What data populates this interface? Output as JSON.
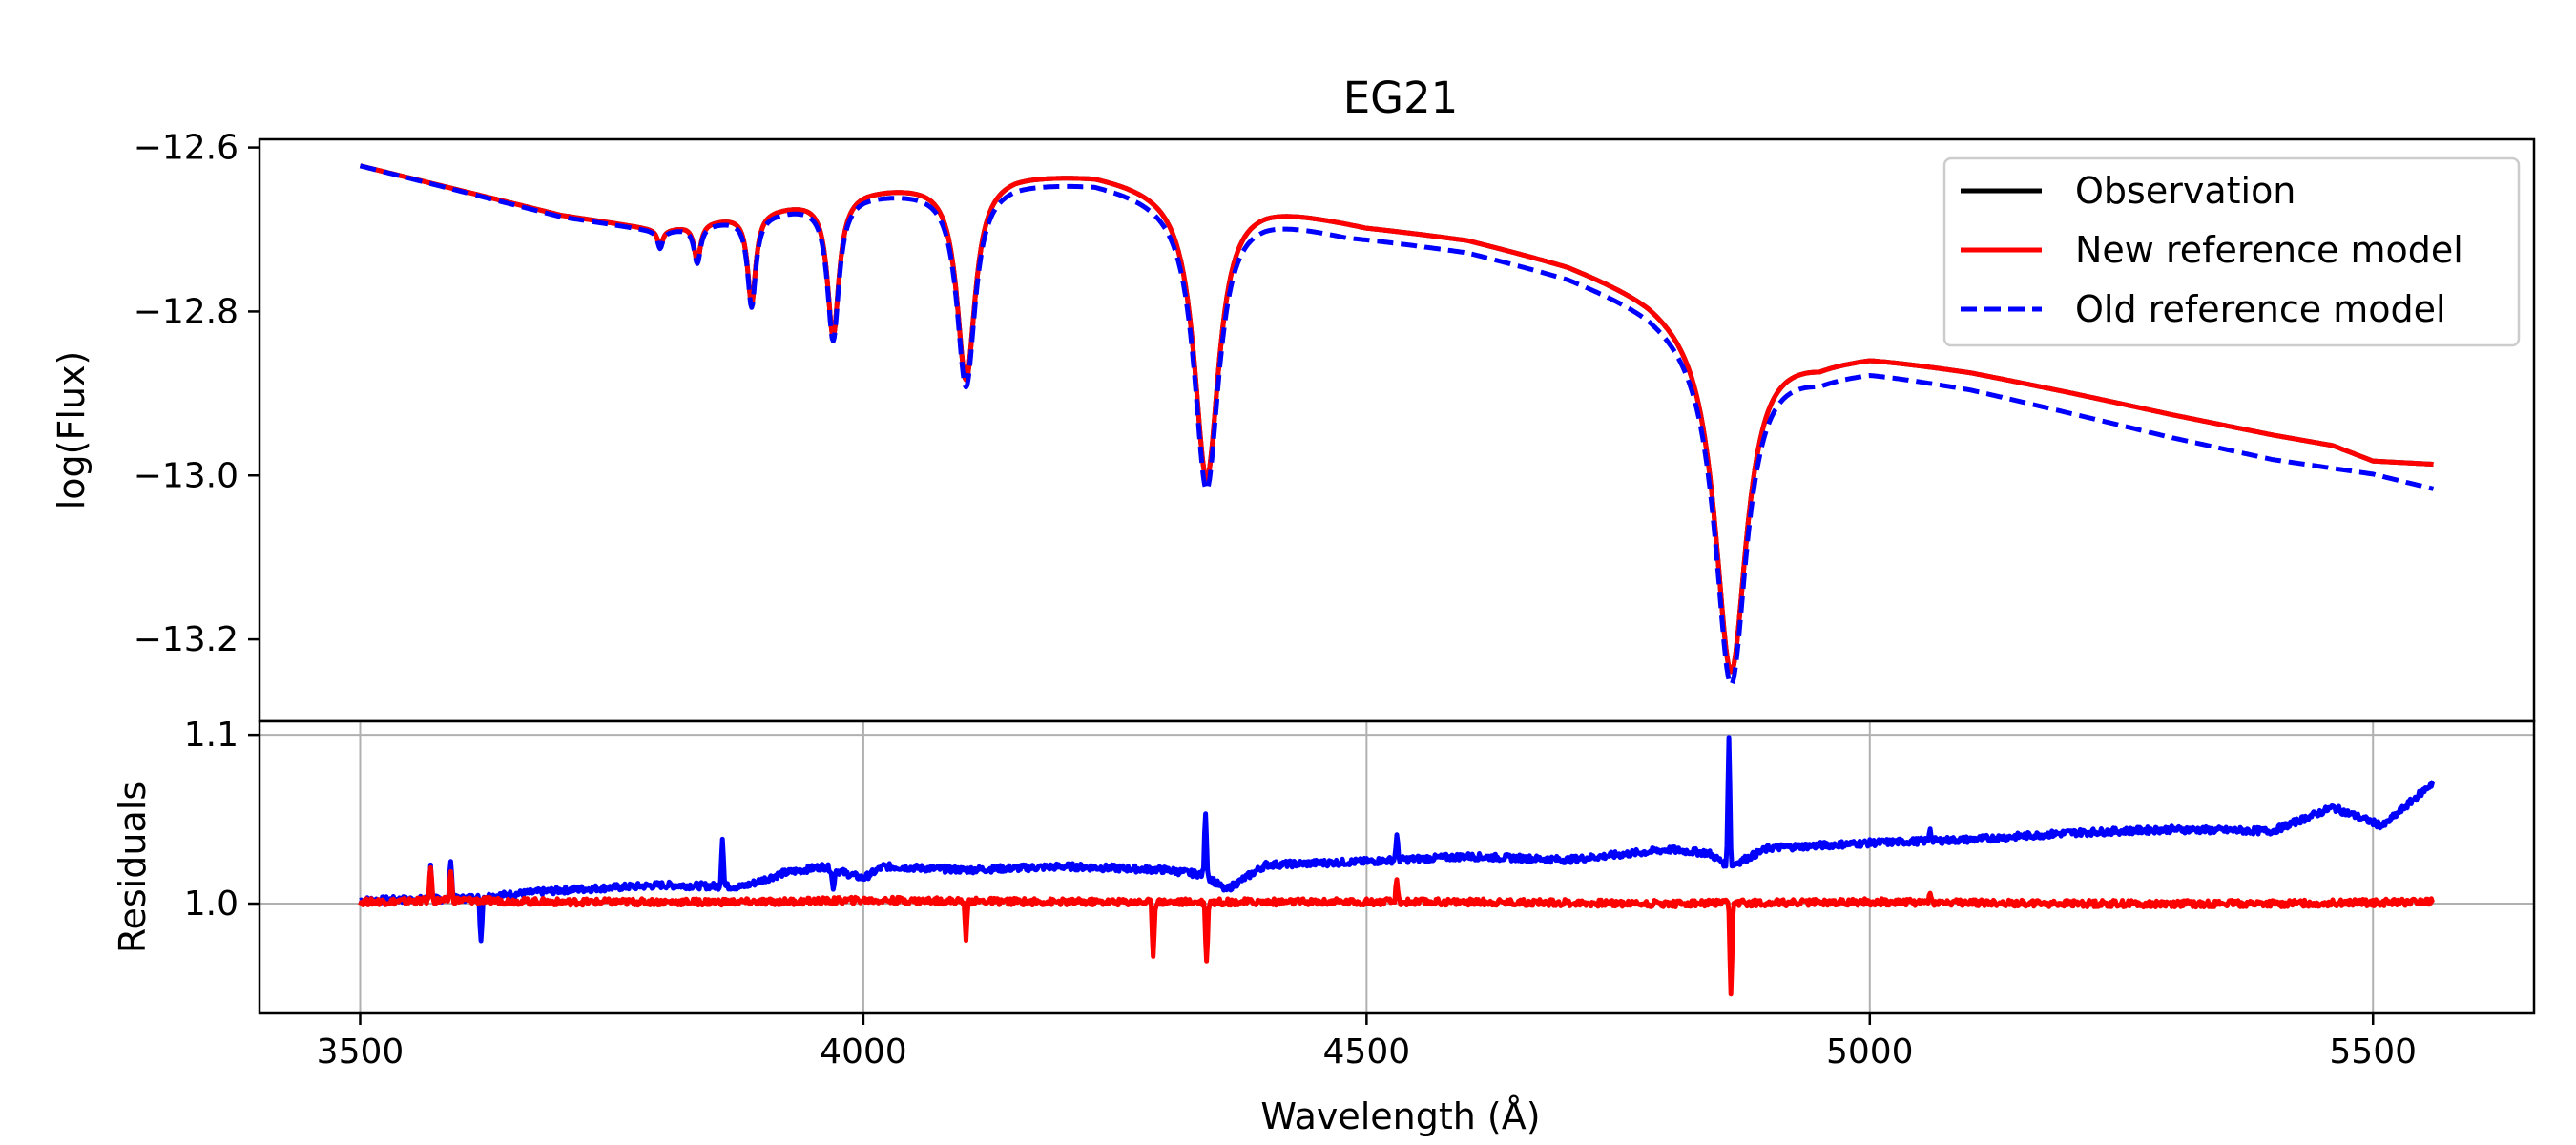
{
  "chart_data": [
    {
      "type": "line",
      "panel": "top",
      "title": "EG21",
      "xlabel": "",
      "ylabel": "log(Flux)",
      "xlim": [
        3400,
        5660
      ],
      "ylim": [
        -13.3,
        -12.59
      ],
      "yticks": [
        -12.6,
        -12.8,
        -13.0,
        -13.2
      ],
      "ytick_labels": [
        "−12.6",
        "−12.8",
        "−13.0",
        "−13.2"
      ],
      "grid": false,
      "legend_position": "top-right",
      "lines": [
        {
          "name": "H-epsilon",
          "center": 3970,
          "depth": 0.17,
          "width": 7
        },
        {
          "name": "H-zeta",
          "center": 3889,
          "depth": 0.11,
          "width": 5
        },
        {
          "name": "H-eta",
          "center": 3835,
          "depth": 0.045,
          "width": 4
        },
        {
          "name": "H-theta",
          "center": 3798,
          "depth": 0.02,
          "width": 3
        },
        {
          "name": "H-delta",
          "center": 4102,
          "depth": 0.245,
          "width": 11
        },
        {
          "name": "H-gamma",
          "center": 4341,
          "depth": 0.35,
          "width": 15
        },
        {
          "name": "H-beta",
          "center": 4862,
          "depth": 0.42,
          "width": 19
        }
      ],
      "series": [
        {
          "name": "Observation",
          "color": "#000000",
          "style": "solid",
          "continuum": [
            [
              3500,
              -12.622
            ],
            [
              3700,
              -12.682
            ],
            [
              3800,
              -12.7
            ],
            [
              3900,
              -12.675
            ],
            [
              4000,
              -12.65
            ],
            [
              4150,
              -12.63
            ],
            [
              4230,
              -12.63
            ],
            [
              4400,
              -12.665
            ],
            [
              4500,
              -12.694
            ],
            [
              4600,
              -12.71
            ],
            [
              4700,
              -12.74
            ],
            [
              4780,
              -12.775
            ],
            [
              4840,
              -12.81
            ],
            [
              4950,
              -12.855
            ],
            [
              5000,
              -12.852
            ],
            [
              5100,
              -12.872
            ],
            [
              5200,
              -12.898
            ],
            [
              5300,
              -12.925
            ],
            [
              5400,
              -12.95
            ],
            [
              5460,
              -12.963
            ],
            [
              5500,
              -12.982
            ],
            [
              5560,
              -12.986
            ]
          ]
        },
        {
          "name": "New reference model",
          "color": "#ff0000",
          "style": "solid",
          "continuum": [
            [
              3500,
              -12.622
            ],
            [
              3700,
              -12.682
            ],
            [
              3800,
              -12.7
            ],
            [
              3900,
              -12.675
            ],
            [
              4000,
              -12.65
            ],
            [
              4150,
              -12.63
            ],
            [
              4230,
              -12.63
            ],
            [
              4400,
              -12.665
            ],
            [
              4500,
              -12.694
            ],
            [
              4600,
              -12.71
            ],
            [
              4700,
              -12.74
            ],
            [
              4780,
              -12.775
            ],
            [
              4840,
              -12.81
            ],
            [
              4950,
              -12.855
            ],
            [
              5000,
              -12.852
            ],
            [
              5100,
              -12.872
            ],
            [
              5200,
              -12.898
            ],
            [
              5300,
              -12.925
            ],
            [
              5400,
              -12.95
            ],
            [
              5460,
              -12.963
            ],
            [
              5500,
              -12.982
            ],
            [
              5560,
              -12.986
            ]
          ]
        },
        {
          "name": "Old reference model",
          "color": "#0000ff",
          "style": "dashed",
          "continuum": [
            [
              3500,
              -12.622
            ],
            [
              3700,
              -12.684
            ],
            [
              3800,
              -12.702
            ],
            [
              3900,
              -12.68
            ],
            [
              4000,
              -12.656
            ],
            [
              4150,
              -12.64
            ],
            [
              4230,
              -12.64
            ],
            [
              4400,
              -12.68
            ],
            [
              4480,
              -12.705
            ],
            [
              4600,
              -12.725
            ],
            [
              4700,
              -12.755
            ],
            [
              4780,
              -12.79
            ],
            [
              4840,
              -12.825
            ],
            [
              4950,
              -12.873
            ],
            [
              5000,
              -12.87
            ],
            [
              5100,
              -12.893
            ],
            [
              5200,
              -12.923
            ],
            [
              5300,
              -12.953
            ],
            [
              5400,
              -12.98
            ],
            [
              5500,
              -12.998
            ],
            [
              5560,
              -13.016
            ]
          ]
        }
      ]
    },
    {
      "type": "line",
      "panel": "bottom",
      "title": "",
      "xlabel": "Wavelength (Å)",
      "ylabel": "Residuals",
      "xlim": [
        3400,
        5660
      ],
      "ylim": [
        0.935,
        1.108
      ],
      "xticks": [
        3500,
        4000,
        4500,
        5000,
        5500
      ],
      "xtick_labels": [
        "3500",
        "4000",
        "4500",
        "5000",
        "5500"
      ],
      "yticks": [
        1.0,
        1.1
      ],
      "ytick_labels": [
        "1.0",
        "1.1"
      ],
      "grid": true,
      "series": [
        {
          "name": "",
          "color": "#0000ff",
          "baseline": [
            [
              3500,
              1.002
            ],
            [
              3600,
              1.003
            ],
            [
              3700,
              1.008
            ],
            [
              3800,
              1.011
            ],
            [
              3880,
              1.01
            ],
            [
              3920,
              1.018
            ],
            [
              3960,
              1.022
            ],
            [
              4000,
              1.015
            ],
            [
              4020,
              1.022
            ],
            [
              4100,
              1.02
            ],
            [
              4200,
              1.022
            ],
            [
              4300,
              1.02
            ],
            [
              4340,
              1.017
            ],
            [
              4360,
              1.008
            ],
            [
              4400,
              1.023
            ],
            [
              4500,
              1.025
            ],
            [
              4600,
              1.028
            ],
            [
              4700,
              1.026
            ],
            [
              4800,
              1.032
            ],
            [
              4840,
              1.03
            ],
            [
              4860,
              1.022
            ],
            [
              4900,
              1.033
            ],
            [
              5000,
              1.036
            ],
            [
              5100,
              1.038
            ],
            [
              5200,
              1.042
            ],
            [
              5300,
              1.044
            ],
            [
              5400,
              1.043
            ],
            [
              5460,
              1.057
            ],
            [
              5510,
              1.046
            ],
            [
              5560,
              1.072
            ]
          ],
          "spikes": [
            [
              3570,
              1.022
            ],
            [
              3590,
              1.027
            ],
            [
              3620,
              0.978
            ],
            [
              3860,
              1.04
            ],
            [
              3970,
              1.008
            ],
            [
              4340,
              1.055
            ],
            [
              4530,
              1.04
            ],
            [
              4860,
              1.1
            ],
            [
              5060,
              1.045
            ]
          ]
        },
        {
          "name": "",
          "color": "#ff0000",
          "baseline": [
            [
              3500,
              1.001
            ],
            [
              3600,
              1.002
            ],
            [
              3700,
              1.001
            ],
            [
              3800,
              1.001
            ],
            [
              3900,
              1.001
            ],
            [
              4000,
              1.002
            ],
            [
              4200,
              1.001
            ],
            [
              4400,
              1.001
            ],
            [
              4600,
              1.001
            ],
            [
              4800,
              1.0
            ],
            [
              5000,
              1.001
            ],
            [
              5200,
              1.0
            ],
            [
              5400,
              1.0
            ],
            [
              5560,
              1.001
            ]
          ],
          "spikes": [
            [
              3570,
              1.023
            ],
            [
              3590,
              1.02
            ],
            [
              4102,
              0.98
            ],
            [
              4288,
              0.97
            ],
            [
              4341,
              0.965
            ],
            [
              4530,
              1.013
            ],
            [
              4862,
              0.945
            ],
            [
              5060,
              1.006
            ]
          ]
        }
      ]
    }
  ],
  "legend": {
    "items": [
      {
        "label": "Observation",
        "color": "#000000",
        "style": "solid"
      },
      {
        "label": "New reference model",
        "color": "#ff0000",
        "style": "solid"
      },
      {
        "label": "Old reference model",
        "color": "#0000ff",
        "style": "dashed"
      }
    ]
  }
}
